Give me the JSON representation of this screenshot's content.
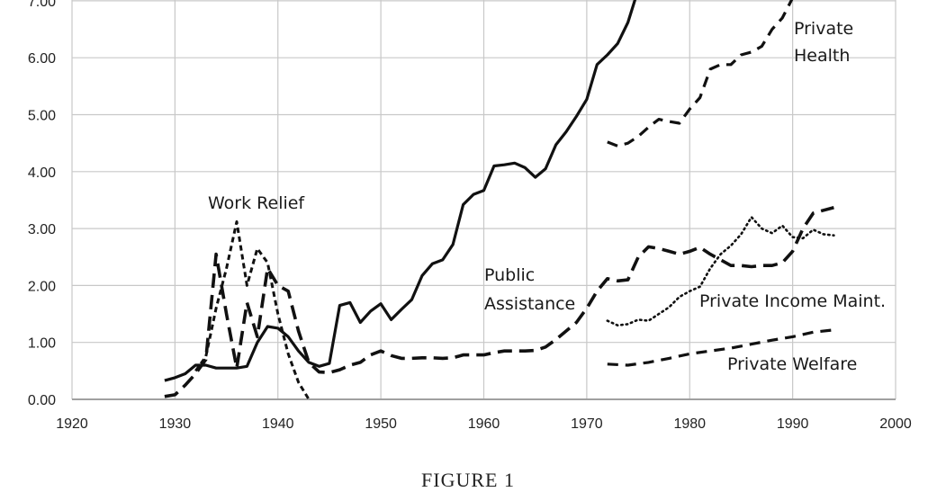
{
  "chart_data": {
    "type": "line",
    "title": "",
    "caption": "FIGURE 1",
    "xlabel": "",
    "ylabel": "",
    "xlim": [
      1920,
      2000
    ],
    "ylim": [
      0,
      7
    ],
    "grid": true,
    "x_ticks": [
      "1920",
      "1930",
      "1940",
      "1950",
      "1960",
      "1970",
      "1980",
      "1990",
      "2000"
    ],
    "y_ticks": [
      "0.00",
      "1.00",
      "2.00",
      "3.00",
      "4.00",
      "5.00",
      "6.00",
      "7.00"
    ],
    "series": [
      {
        "key": "solid",
        "style": "solid",
        "x": [
          1929,
          1930,
          1931,
          1932,
          1933,
          1934,
          1935,
          1936,
          1937,
          1938,
          1939,
          1940,
          1941,
          1942,
          1943,
          1944,
          1945,
          1946,
          1947,
          1948,
          1949,
          1950,
          1951,
          1952,
          1953,
          1954,
          1955,
          1956,
          1957,
          1958,
          1959,
          1960,
          1961,
          1962,
          1963,
          1964,
          1965,
          1966,
          1967,
          1968,
          1969,
          1970,
          1971,
          1972,
          1973,
          1974,
          1975
        ],
        "y": [
          0.33,
          0.38,
          0.45,
          0.6,
          0.6,
          0.55,
          0.55,
          0.55,
          0.58,
          1.0,
          1.28,
          1.25,
          1.1,
          0.85,
          0.65,
          0.58,
          0.63,
          1.65,
          1.7,
          1.35,
          1.55,
          1.68,
          1.4,
          1.58,
          1.75,
          2.17,
          2.38,
          2.45,
          2.72,
          3.42,
          3.6,
          3.67,
          4.1,
          4.12,
          4.15,
          4.07,
          3.9,
          4.05,
          4.47,
          4.7,
          4.97,
          5.27,
          5.88,
          6.05,
          6.25,
          6.62,
          7.2
        ]
      },
      {
        "key": "public_assistance",
        "name": "Public Assistance",
        "style": "long-dash",
        "x": [
          1929,
          1930,
          1931,
          1932,
          1933,
          1934,
          1935,
          1936,
          1937,
          1938,
          1939,
          1940,
          1941,
          1942,
          1943,
          1944,
          1945,
          1946,
          1947,
          1948,
          1949,
          1950,
          1951,
          1952,
          1953,
          1954,
          1955,
          1956,
          1957,
          1958,
          1959,
          1960,
          1961,
          1962,
          1963,
          1964,
          1965,
          1966,
          1967,
          1968,
          1969,
          1970,
          1971,
          1972,
          1973,
          1974,
          1975,
          1976,
          1977,
          1978,
          1979,
          1980,
          1981,
          1982,
          1983,
          1984,
          1985,
          1986,
          1987,
          1988,
          1989,
          1990,
          1991,
          1992,
          1993,
          1994
        ],
        "y": [
          0.05,
          0.08,
          0.25,
          0.45,
          0.7,
          2.55,
          1.5,
          0.55,
          1.7,
          1.1,
          2.3,
          2.0,
          1.9,
          1.2,
          0.65,
          0.48,
          0.47,
          0.52,
          0.6,
          0.65,
          0.78,
          0.85,
          0.77,
          0.72,
          0.72,
          0.73,
          0.73,
          0.72,
          0.73,
          0.78,
          0.78,
          0.78,
          0.82,
          0.85,
          0.85,
          0.85,
          0.86,
          0.92,
          1.05,
          1.2,
          1.35,
          1.6,
          1.9,
          2.12,
          2.08,
          2.1,
          2.5,
          2.68,
          2.65,
          2.6,
          2.55,
          2.6,
          2.67,
          2.55,
          2.45,
          2.35,
          2.35,
          2.33,
          2.35,
          2.35,
          2.4,
          2.6,
          3.0,
          3.27,
          3.32,
          3.37
        ]
      },
      {
        "key": "work_relief",
        "name": "Work Relief",
        "style": "short-dash",
        "x": [
          1932,
          1933,
          1934,
          1935,
          1936,
          1937,
          1938,
          1939,
          1940,
          1941,
          1942,
          1943
        ],
        "y": [
          0.5,
          0.75,
          1.6,
          2.3,
          3.12,
          2.0,
          2.65,
          2.4,
          1.5,
          0.8,
          0.3,
          0.0
        ]
      },
      {
        "key": "private_health",
        "name": "Private Health",
        "style": "dash",
        "x": [
          1972,
          1973,
          1974,
          1975,
          1976,
          1977,
          1978,
          1979,
          1980,
          1981,
          1982,
          1983,
          1984,
          1985,
          1986,
          1987,
          1988,
          1989,
          1990
        ],
        "y": [
          4.52,
          4.45,
          4.5,
          4.62,
          4.78,
          4.92,
          4.88,
          4.85,
          5.1,
          5.3,
          5.8,
          5.88,
          5.88,
          6.05,
          6.1,
          6.2,
          6.5,
          6.7,
          7.05
        ]
      },
      {
        "key": "private_income_maint",
        "name": "Private Income Maint.",
        "style": "dotted",
        "x": [
          1972,
          1973,
          1974,
          1975,
          1976,
          1977,
          1978,
          1979,
          1980,
          1981,
          1982,
          1983,
          1984,
          1985,
          1986,
          1987,
          1988,
          1989,
          1990,
          1991,
          1992,
          1993,
          1994
        ],
        "y": [
          1.38,
          1.3,
          1.32,
          1.4,
          1.38,
          1.5,
          1.62,
          1.8,
          1.9,
          1.98,
          2.3,
          2.55,
          2.7,
          2.9,
          3.2,
          3.0,
          2.92,
          3.05,
          2.85,
          2.83,
          2.98,
          2.9,
          2.88
        ]
      },
      {
        "key": "private_welfare",
        "name": "Private Welfare",
        "style": "dash",
        "x": [
          1972,
          1974,
          1976,
          1978,
          1980,
          1982,
          1984,
          1986,
          1988,
          1990,
          1992,
          1994
        ],
        "y": [
          0.62,
          0.6,
          0.65,
          0.72,
          0.8,
          0.85,
          0.9,
          0.97,
          1.04,
          1.1,
          1.18,
          1.22
        ]
      }
    ],
    "annotations": {
      "work_relief": "Work Relief",
      "public_assistance_1": "Public",
      "public_assistance_2": "Assistance",
      "private_health_1": "Private",
      "private_health_2": "Health",
      "private_income_maint": "Private Income Maint.",
      "private_welfare": "Private Welfare"
    },
    "colors": {
      "line": "#111111",
      "grid": "#c8c8c8",
      "axis": "#a0a0a0"
    }
  }
}
